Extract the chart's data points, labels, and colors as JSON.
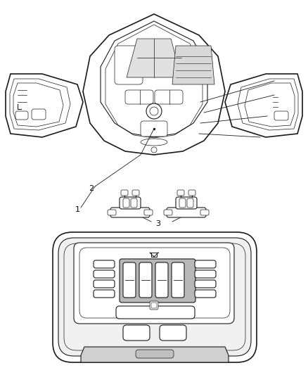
{
  "background_color": "#ffffff",
  "line_color": "#1a1a1a",
  "label_color": "#000000",
  "label_fontsize": 8,
  "figure_width": 4.38,
  "figure_height": 5.33,
  "dpi": 100
}
